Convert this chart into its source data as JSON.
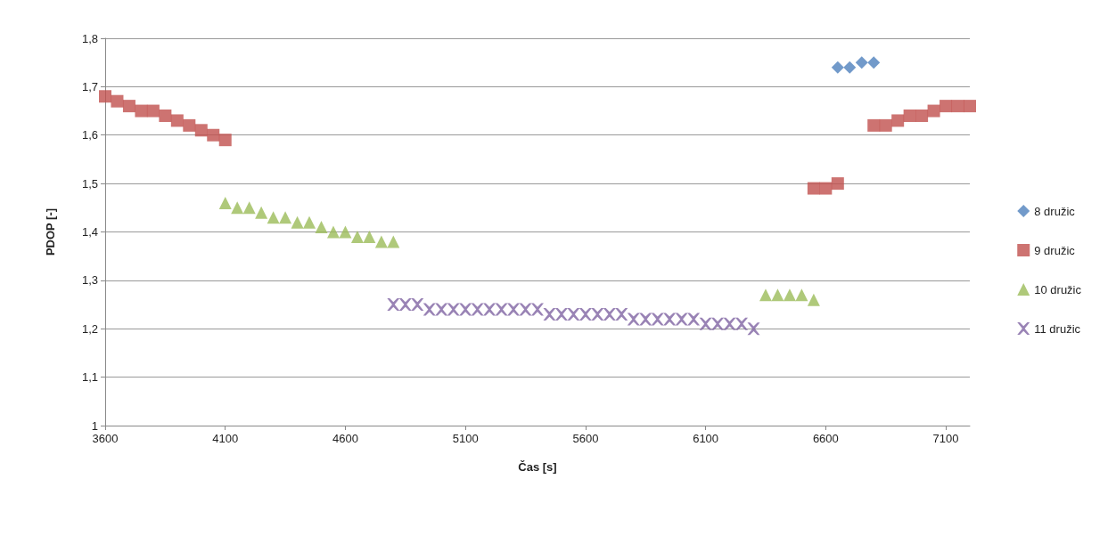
{
  "chart_data": {
    "type": "scatter",
    "xlabel": "Čas [s]",
    "ylabel": "PDOP [-]",
    "xlim": [
      3600,
      7200
    ],
    "xticks": [
      3600,
      4100,
      4600,
      5100,
      5600,
      6100,
      6600,
      7100
    ],
    "ylim": [
      1,
      1.8
    ],
    "yticks": [
      1,
      {
        "value": 1.1,
        "label": "1,1"
      },
      {
        "value": 1.2,
        "label": "1,2"
      },
      {
        "value": 1.3,
        "label": "1,3"
      },
      {
        "value": 1.4,
        "label": "1,4"
      },
      {
        "value": 1.5,
        "label": "1,5"
      },
      {
        "value": 1.6,
        "label": "1,6"
      },
      {
        "value": 1.7,
        "label": "1,7"
      },
      {
        "value": 1.8,
        "label": "1,8"
      }
    ],
    "grid": "y",
    "legend": "right",
    "series": [
      {
        "name": "8 družic",
        "color": "#4f81bd",
        "marker": "diamond",
        "x": [
          6650,
          6700,
          6750,
          6800
        ],
        "values": [
          1.74,
          1.74,
          1.75,
          1.75
        ]
      },
      {
        "name": "9 družic",
        "color": "#c0504d",
        "marker": "square",
        "x": [
          3600,
          3650,
          3700,
          3750,
          3800,
          3850,
          3900,
          3950,
          4000,
          4050,
          4100,
          6550,
          6600,
          6650,
          6800,
          6850,
          6900,
          6950,
          7000,
          7050,
          7100,
          7150,
          7200
        ],
        "values": [
          1.68,
          1.67,
          1.66,
          1.65,
          1.65,
          1.64,
          1.63,
          1.62,
          1.61,
          1.6,
          1.59,
          1.49,
          1.49,
          1.5,
          1.62,
          1.62,
          1.63,
          1.64,
          1.64,
          1.65,
          1.66,
          1.66,
          1.66
        ]
      },
      {
        "name": "10 družic",
        "color": "#9bbb59",
        "marker": "triangle",
        "x": [
          4100,
          4150,
          4200,
          4250,
          4300,
          4350,
          4400,
          4450,
          4500,
          4550,
          4600,
          4650,
          4700,
          4750,
          4800,
          6350,
          6400,
          6450,
          6500,
          6550
        ],
        "values": [
          1.46,
          1.45,
          1.45,
          1.44,
          1.43,
          1.43,
          1.42,
          1.42,
          1.41,
          1.4,
          1.4,
          1.39,
          1.39,
          1.38,
          1.38,
          1.27,
          1.27,
          1.27,
          1.27,
          1.26
        ]
      },
      {
        "name": "11 družic",
        "color": "#8064a2",
        "marker": "cross",
        "x": [
          4800,
          4850,
          4900,
          4950,
          5000,
          5050,
          5100,
          5150,
          5200,
          5250,
          5300,
          5350,
          5400,
          5450,
          5500,
          5550,
          5600,
          5650,
          5700,
          5750,
          5800,
          5850,
          5900,
          5950,
          6000,
          6050,
          6100,
          6150,
          6200,
          6250,
          6300
        ],
        "values": [
          1.25,
          1.25,
          1.25,
          1.24,
          1.24,
          1.24,
          1.24,
          1.24,
          1.24,
          1.24,
          1.24,
          1.24,
          1.24,
          1.23,
          1.23,
          1.23,
          1.23,
          1.23,
          1.23,
          1.23,
          1.22,
          1.22,
          1.22,
          1.22,
          1.22,
          1.22,
          1.21,
          1.21,
          1.21,
          1.21,
          1.2
        ]
      }
    ]
  }
}
